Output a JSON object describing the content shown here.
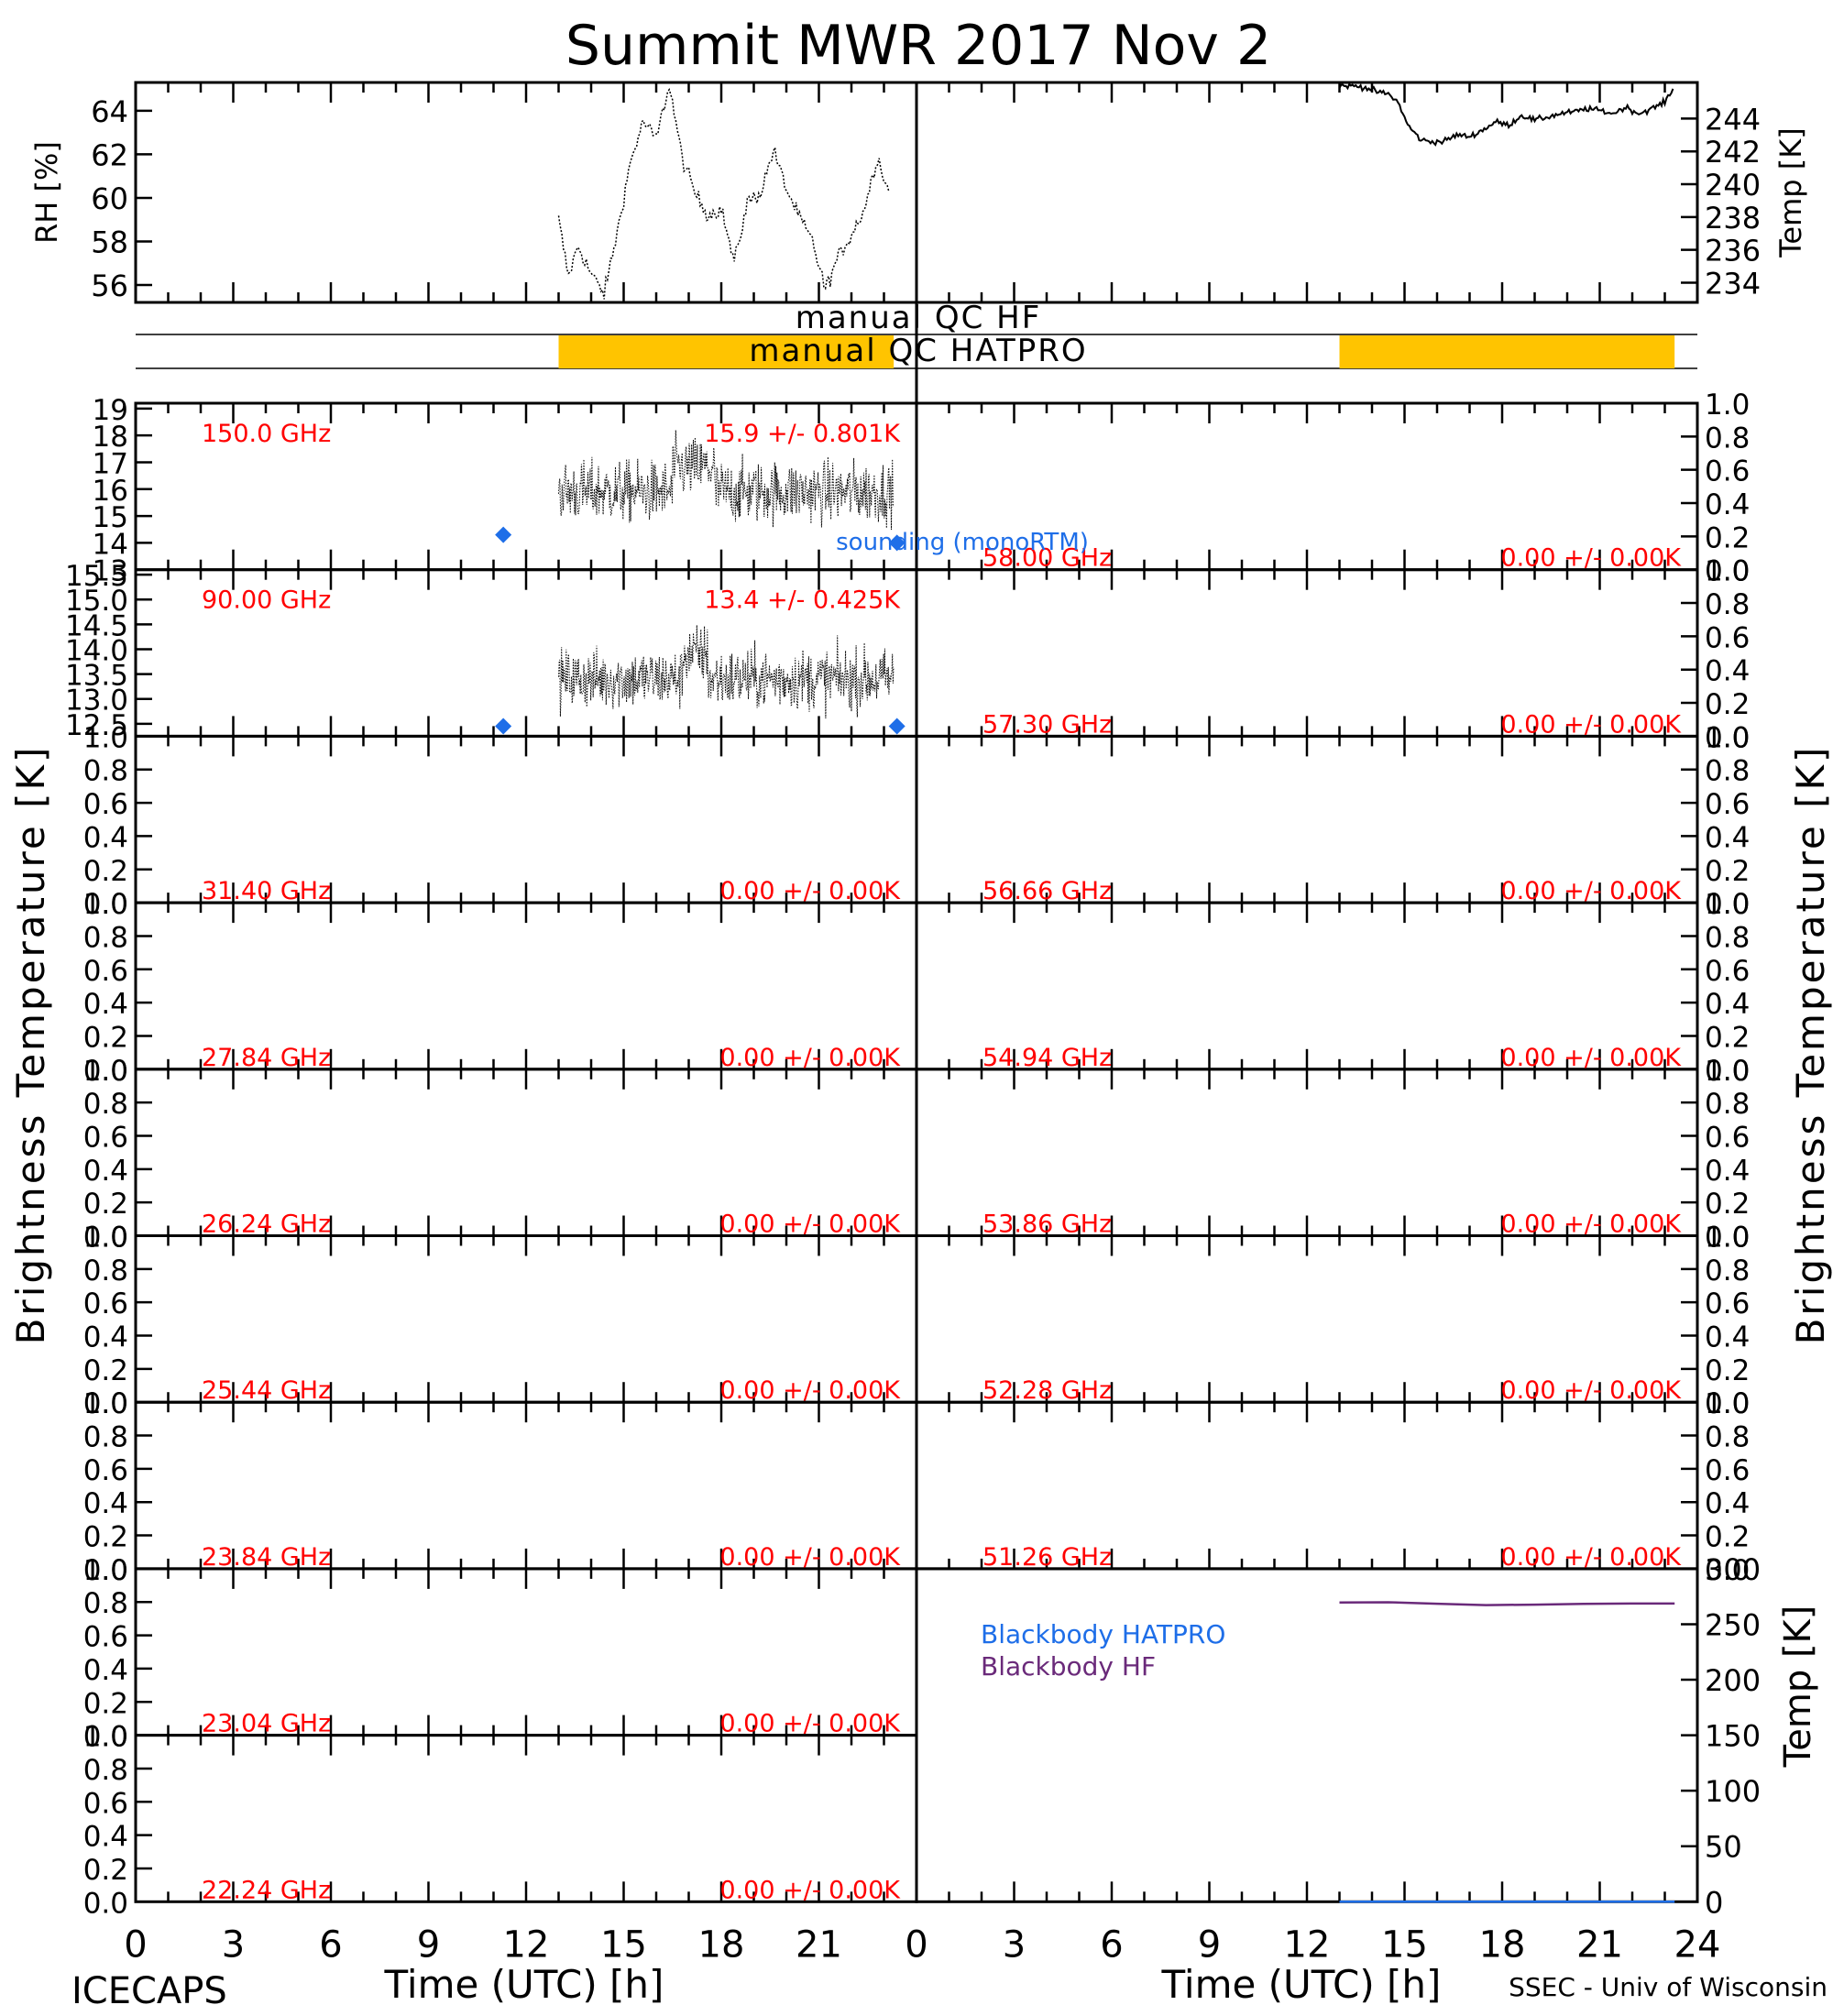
{
  "title": "Summit MWR 2017 Nov  2",
  "footer_left": "ICECAPS",
  "footer_right": "SSEC - Univ of Wisconsin",
  "xlabel": "Time (UTC) [h]",
  "ylabel_left": "Brightness Temperature [K]",
  "ylabel_right": "Brightness Temperature [K]",
  "colors": {
    "red_text": "#ff0000",
    "sounding": "#1e6ee8",
    "qc_bar": "#ffc400",
    "blackbody_hatpro": "#1e6ee8",
    "blackbody_hf": "#6a2a7a",
    "trace": "#000000"
  },
  "qc_labels": {
    "hf": "manual QC HF",
    "hatpro": "manual QC HATPRO"
  },
  "legend": {
    "sounding": "sounding (monoRTM)",
    "bb_hatpro": "Blackbody HATPRO",
    "bb_hf": "Blackbody HF"
  },
  "chart_data": [
    {
      "type": "line",
      "panel": "surface-rh",
      "ylabel": "RH [%]",
      "xlim": [
        0,
        24
      ],
      "ylim": [
        55.2,
        65.3
      ],
      "yticks": [
        56,
        58,
        60,
        62,
        64
      ],
      "x": [
        13.0,
        13.3,
        13.6,
        14.0,
        14.4,
        14.8,
        15.2,
        15.6,
        16.0,
        16.4,
        16.8,
        17.2,
        17.6,
        18.0,
        18.4,
        18.8,
        19.2,
        19.6,
        20.0,
        20.4,
        20.8,
        21.2,
        21.6,
        22.0,
        22.4,
        22.8,
        23.2
      ],
      "values": [
        59.0,
        56.4,
        57.8,
        56.5,
        55.6,
        58.4,
        61.6,
        63.5,
        62.7,
        65.2,
        61.8,
        60.2,
        59.2,
        59.5,
        57.0,
        59.8,
        60.2,
        62.2,
        60.4,
        59.1,
        58.0,
        55.8,
        57.3,
        58.3,
        59.5,
        61.9,
        60.0
      ]
    },
    {
      "type": "line",
      "panel": "surface-temp",
      "ylabel": "Temp [K]",
      "xlim": [
        0,
        24
      ],
      "ylim": [
        232.8,
        246.2
      ],
      "yticks": [
        234,
        236,
        238,
        240,
        242,
        244
      ],
      "x": [
        13.0,
        13.4,
        13.8,
        14.2,
        14.5,
        14.8,
        15.1,
        15.5,
        15.8,
        16.2,
        16.6,
        17.0,
        17.4,
        17.8,
        18.2,
        18.6,
        19.0,
        19.4,
        19.8,
        20.2,
        20.6,
        21.0,
        21.4,
        21.8,
        22.2,
        22.6,
        23.0,
        23.3
      ],
      "values": [
        246.0,
        246.0,
        245.9,
        245.6,
        245.5,
        245.0,
        243.6,
        242.7,
        242.6,
        242.6,
        243.0,
        242.9,
        243.3,
        243.8,
        243.6,
        244.2,
        243.9,
        244.1,
        244.3,
        244.4,
        244.6,
        244.5,
        244.3,
        244.7,
        244.3,
        244.6,
        245.0,
        246.0
      ]
    },
    {
      "type": "bar",
      "panel": "qc-bars",
      "series": [
        {
          "name": "manual QC HF",
          "spans": []
        },
        {
          "name": "manual QC HATPRO",
          "spans": [
            [
              13.0,
              23.3
            ],
            [
              37.0,
              47.3
            ]
          ]
        }
      ]
    },
    {
      "type": "line",
      "panel": "left",
      "freq_label": "150.0 GHz",
      "stat_label": "15.9 +/- 0.801K",
      "ylim": [
        13,
        19.2
      ],
      "yticks": [
        13,
        14,
        15,
        16,
        17,
        18,
        19
      ],
      "ytick_labels": [
        "13",
        "14",
        "15",
        "16",
        "17",
        "18",
        "19"
      ],
      "trace": {
        "xrange": [
          13.0,
          23.3
        ],
        "mean": 15.9,
        "std": 0.801
      },
      "sounding": [
        {
          "x": 11.3,
          "y": 14.3
        },
        {
          "x": 23.4,
          "y": 14.0
        }
      ]
    },
    {
      "type": "line",
      "panel": "left",
      "freq_label": "90.00 GHz",
      "stat_label": "13.4 +/- 0.425K",
      "ylim": [
        12.25,
        15.6
      ],
      "yticks": [
        12.5,
        13.0,
        13.5,
        14.0,
        14.5,
        15.0,
        15.5
      ],
      "ytick_labels": [
        "12.5",
        "13.0",
        "13.5",
        "14.0",
        "14.5",
        "15.0",
        "15.5"
      ],
      "trace": {
        "xrange": [
          13.0,
          23.3
        ],
        "mean": 13.4,
        "std": 0.425
      },
      "sounding": [
        {
          "x": 11.3,
          "y": 12.45
        },
        {
          "x": 23.4,
          "y": 12.45
        }
      ]
    },
    {
      "type": "line",
      "panel": "left",
      "freq_label": "31.40 GHz",
      "stat_label": "0.00 +/- 0.00K",
      "ylim": [
        0,
        1
      ],
      "yticks": [
        0,
        0.2,
        0.4,
        0.6,
        0.8,
        1.0
      ],
      "ytick_labels": [
        "0.0",
        "0.2",
        "0.4",
        "0.6",
        "0.8",
        "1.0"
      ]
    },
    {
      "type": "line",
      "panel": "left",
      "freq_label": "27.84 GHz",
      "stat_label": "0.00 +/- 0.00K",
      "ylim": [
        0,
        1
      ],
      "yticks": [
        0,
        0.2,
        0.4,
        0.6,
        0.8,
        1.0
      ],
      "ytick_labels": [
        "0.0",
        "0.2",
        "0.4",
        "0.6",
        "0.8",
        "1.0"
      ]
    },
    {
      "type": "line",
      "panel": "left",
      "freq_label": "26.24 GHz",
      "stat_label": "0.00 +/- 0.00K",
      "ylim": [
        0,
        1
      ],
      "yticks": [
        0,
        0.2,
        0.4,
        0.6,
        0.8,
        1.0
      ],
      "ytick_labels": [
        "0.0",
        "0.2",
        "0.4",
        "0.6",
        "0.8",
        "1.0"
      ]
    },
    {
      "type": "line",
      "panel": "left",
      "freq_label": "25.44 GHz",
      "stat_label": "0.00 +/- 0.00K",
      "ylim": [
        0,
        1
      ],
      "yticks": [
        0,
        0.2,
        0.4,
        0.6,
        0.8,
        1.0
      ],
      "ytick_labels": [
        "0.0",
        "0.2",
        "0.4",
        "0.6",
        "0.8",
        "1.0"
      ]
    },
    {
      "type": "line",
      "panel": "left",
      "freq_label": "23.84 GHz",
      "stat_label": "0.00 +/- 0.00K",
      "ylim": [
        0,
        1
      ],
      "yticks": [
        0,
        0.2,
        0.4,
        0.6,
        0.8,
        1.0
      ],
      "ytick_labels": [
        "0.0",
        "0.2",
        "0.4",
        "0.6",
        "0.8",
        "1.0"
      ]
    },
    {
      "type": "line",
      "panel": "left",
      "freq_label": "23.04 GHz",
      "stat_label": "0.00 +/- 0.00K",
      "ylim": [
        0,
        1
      ],
      "yticks": [
        0,
        0.2,
        0.4,
        0.6,
        0.8,
        1.0
      ],
      "ytick_labels": [
        "0.0",
        "0.2",
        "0.4",
        "0.6",
        "0.8",
        "1.0"
      ]
    },
    {
      "type": "line",
      "panel": "left",
      "freq_label": "22.24 GHz",
      "stat_label": "0.00 +/- 0.00K",
      "ylim": [
        0,
        1
      ],
      "yticks": [
        0,
        0.2,
        0.4,
        0.6,
        0.8,
        1.0
      ],
      "ytick_labels": [
        "0.0",
        "0.2",
        "0.4",
        "0.6",
        "0.8",
        "1.0"
      ]
    },
    {
      "type": "line",
      "panel": "right",
      "freq_label": "58.00 GHz",
      "stat_label": "0.00 +/- 0.00K",
      "ylim": [
        0,
        1
      ],
      "yticks": [
        0,
        0.2,
        0.4,
        0.6,
        0.8,
        1.0
      ],
      "ytick_labels": [
        "0.0",
        "0.2",
        "0.4",
        "0.6",
        "0.8",
        "1.0"
      ]
    },
    {
      "type": "line",
      "panel": "right",
      "freq_label": "57.30 GHz",
      "stat_label": "0.00 +/- 0.00K",
      "ylim": [
        0,
        1
      ],
      "yticks": [
        0,
        0.2,
        0.4,
        0.6,
        0.8,
        1.0
      ],
      "ytick_labels": [
        "0.0",
        "0.2",
        "0.4",
        "0.6",
        "0.8",
        "1.0"
      ]
    },
    {
      "type": "line",
      "panel": "right",
      "freq_label": "56.66 GHz",
      "stat_label": "0.00 +/- 0.00K",
      "ylim": [
        0,
        1
      ],
      "yticks": [
        0,
        0.2,
        0.4,
        0.6,
        0.8,
        1.0
      ],
      "ytick_labels": [
        "0.0",
        "0.2",
        "0.4",
        "0.6",
        "0.8",
        "1.0"
      ]
    },
    {
      "type": "line",
      "panel": "right",
      "freq_label": "54.94 GHz",
      "stat_label": "0.00 +/- 0.00K",
      "ylim": [
        0,
        1
      ],
      "yticks": [
        0,
        0.2,
        0.4,
        0.6,
        0.8,
        1.0
      ],
      "ytick_labels": [
        "0.0",
        "0.2",
        "0.4",
        "0.6",
        "0.8",
        "1.0"
      ]
    },
    {
      "type": "line",
      "panel": "right",
      "freq_label": "53.86 GHz",
      "stat_label": "0.00 +/- 0.00K",
      "ylim": [
        0,
        1
      ],
      "yticks": [
        0,
        0.2,
        0.4,
        0.6,
        0.8,
        1.0
      ],
      "ytick_labels": [
        "0.0",
        "0.2",
        "0.4",
        "0.6",
        "0.8",
        "1.0"
      ]
    },
    {
      "type": "line",
      "panel": "right",
      "freq_label": "52.28 GHz",
      "stat_label": "0.00 +/- 0.00K",
      "ylim": [
        0,
        1
      ],
      "yticks": [
        0,
        0.2,
        0.4,
        0.6,
        0.8,
        1.0
      ],
      "ytick_labels": [
        "0.0",
        "0.2",
        "0.4",
        "0.6",
        "0.8",
        "1.0"
      ]
    },
    {
      "type": "line",
      "panel": "right",
      "freq_label": "51.26 GHz",
      "stat_label": "0.00 +/- 0.00K",
      "ylim": [
        0,
        1
      ],
      "yticks": [
        0,
        0.2,
        0.4,
        0.6,
        0.8,
        1.0
      ],
      "ytick_labels": [
        "0.0",
        "0.2",
        "0.4",
        "0.6",
        "0.8",
        "1.0"
      ]
    },
    {
      "type": "line",
      "panel": "blackbody",
      "ylabel": "Temp [K]",
      "xlim": [
        0,
        24
      ],
      "ylim": [
        0,
        300
      ],
      "yticks": [
        0,
        50,
        100,
        150,
        200,
        250,
        300
      ],
      "series": [
        {
          "name": "Blackbody HF",
          "x": [
            13.0,
            14.5,
            16.0,
            17.5,
            19.0,
            20.5,
            22.0,
            23.3
          ],
          "values": [
            269.5,
            269.8,
            268.5,
            267.2,
            267.6,
            268.3,
            268.6,
            268.6
          ]
        },
        {
          "name": "Blackbody HATPRO",
          "x": [
            13.0,
            23.3
          ],
          "values": [
            0,
            0
          ]
        }
      ]
    }
  ],
  "x_axis": {
    "xlim": [
      0,
      24
    ],
    "left_ticks": [
      "0",
      "3",
      "6",
      "9",
      "12",
      "15",
      "18",
      "21"
    ],
    "right_ticks": [
      "0",
      "3",
      "6",
      "9",
      "12",
      "15",
      "18",
      "21",
      "24"
    ]
  }
}
